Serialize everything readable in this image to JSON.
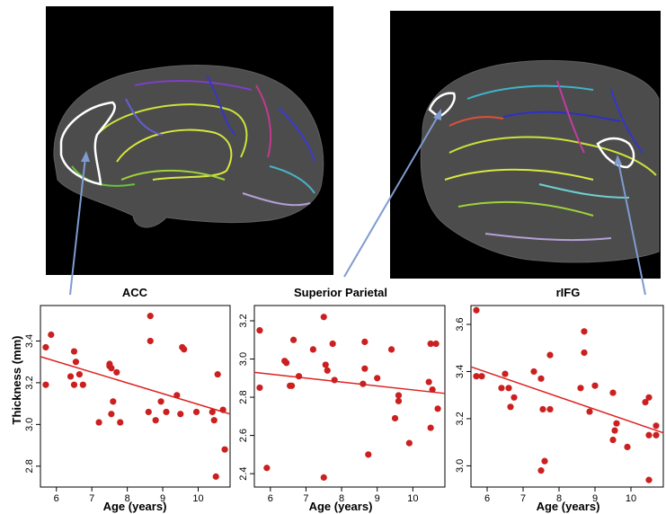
{
  "colors": {
    "brain_background": "#000000",
    "cortex_surface": "#4d4d4d",
    "point": "#cc1f1f",
    "fit_line": "#dd2222",
    "connector": "#7f9bd0",
    "roi_outline": "#ffffff"
  },
  "brains": [
    {
      "view": "medial",
      "highlighted_roi": "ACC"
    },
    {
      "view": "lateral",
      "highlighted_roi": [
        "Superior Parietal",
        "rIFG"
      ]
    }
  ],
  "chart_data": [
    {
      "type": "scatter",
      "title": "ACC",
      "xlabel": "Age (years)",
      "ylabel": "Thickness (mm)",
      "xlim": [
        5.55,
        10.9
      ],
      "ylim": [
        2.7,
        3.57
      ],
      "xticks": [
        6,
        7,
        8,
        9,
        10
      ],
      "yticks": [
        2.8,
        3.0,
        3.2,
        3.4
      ],
      "ytick_labels": [
        "2.8",
        "3.0",
        "3.2",
        "3.4"
      ],
      "fit": {
        "x": [
          5.55,
          10.9
        ],
        "y": [
          3.325,
          3.05
        ]
      },
      "points": [
        {
          "x": 5.7,
          "y": 3.37
        },
        {
          "x": 5.7,
          "y": 3.19
        },
        {
          "x": 5.85,
          "y": 3.43
        },
        {
          "x": 6.4,
          "y": 3.23
        },
        {
          "x": 6.5,
          "y": 3.35
        },
        {
          "x": 6.55,
          "y": 3.3
        },
        {
          "x": 6.5,
          "y": 3.19
        },
        {
          "x": 6.75,
          "y": 3.19
        },
        {
          "x": 6.65,
          "y": 3.24
        },
        {
          "x": 7.2,
          "y": 3.01
        },
        {
          "x": 7.5,
          "y": 3.29
        },
        {
          "x": 7.5,
          "y": 3.28
        },
        {
          "x": 7.55,
          "y": 3.27
        },
        {
          "x": 7.7,
          "y": 3.25
        },
        {
          "x": 7.6,
          "y": 3.11
        },
        {
          "x": 7.55,
          "y": 3.05
        },
        {
          "x": 7.8,
          "y": 3.01
        },
        {
          "x": 8.65,
          "y": 3.52
        },
        {
          "x": 8.65,
          "y": 3.4
        },
        {
          "x": 8.6,
          "y": 3.06
        },
        {
          "x": 8.8,
          "y": 3.02
        },
        {
          "x": 8.95,
          "y": 3.11
        },
        {
          "x": 9.1,
          "y": 3.06
        },
        {
          "x": 9.4,
          "y": 3.14
        },
        {
          "x": 9.55,
          "y": 3.37
        },
        {
          "x": 9.6,
          "y": 3.36
        },
        {
          "x": 9.5,
          "y": 3.05
        },
        {
          "x": 9.95,
          "y": 3.06
        },
        {
          "x": 10.4,
          "y": 3.06
        },
        {
          "x": 10.45,
          "y": 3.02
        },
        {
          "x": 10.55,
          "y": 3.24
        },
        {
          "x": 10.7,
          "y": 3.07
        },
        {
          "x": 10.75,
          "y": 2.88
        },
        {
          "x": 10.5,
          "y": 2.75
        }
      ]
    },
    {
      "type": "scatter",
      "title": "Superior Parietal",
      "xlabel": "Age (years)",
      "ylabel": "",
      "xlim": [
        5.55,
        10.9
      ],
      "ylim": [
        2.33,
        3.28
      ],
      "xticks": [
        6,
        7,
        8,
        9,
        10
      ],
      "yticks": [
        2.4,
        2.6,
        2.8,
        3.0,
        3.2
      ],
      "ytick_labels": [
        "2.4",
        "2.6",
        "2.8",
        "3.0",
        "3.2"
      ],
      "fit": {
        "x": [
          5.55,
          10.9
        ],
        "y": [
          2.93,
          2.82
        ]
      },
      "points": [
        {
          "x": 5.7,
          "y": 3.15
        },
        {
          "x": 5.7,
          "y": 2.85
        },
        {
          "x": 5.9,
          "y": 2.43
        },
        {
          "x": 6.4,
          "y": 2.99
        },
        {
          "x": 6.45,
          "y": 2.98
        },
        {
          "x": 6.55,
          "y": 2.86
        },
        {
          "x": 6.6,
          "y": 2.86
        },
        {
          "x": 6.65,
          "y": 3.1
        },
        {
          "x": 6.8,
          "y": 2.91
        },
        {
          "x": 7.2,
          "y": 3.05
        },
        {
          "x": 7.5,
          "y": 3.22
        },
        {
          "x": 7.55,
          "y": 2.97
        },
        {
          "x": 7.6,
          "y": 2.94
        },
        {
          "x": 7.75,
          "y": 3.08
        },
        {
          "x": 7.8,
          "y": 2.89
        },
        {
          "x": 7.5,
          "y": 2.38
        },
        {
          "x": 8.65,
          "y": 3.09
        },
        {
          "x": 8.65,
          "y": 2.95
        },
        {
          "x": 8.6,
          "y": 2.87
        },
        {
          "x": 8.75,
          "y": 2.5
        },
        {
          "x": 9.0,
          "y": 2.9
        },
        {
          "x": 9.4,
          "y": 3.05
        },
        {
          "x": 9.5,
          "y": 2.69
        },
        {
          "x": 9.6,
          "y": 2.81
        },
        {
          "x": 9.6,
          "y": 2.78
        },
        {
          "x": 9.9,
          "y": 2.56
        },
        {
          "x": 10.5,
          "y": 3.08
        },
        {
          "x": 10.45,
          "y": 2.88
        },
        {
          "x": 10.55,
          "y": 2.84
        },
        {
          "x": 10.65,
          "y": 3.08
        },
        {
          "x": 10.5,
          "y": 2.64
        },
        {
          "x": 10.7,
          "y": 2.74
        }
      ]
    },
    {
      "type": "scatter",
      "title": "rIFG",
      "xlabel": "Age (years)",
      "ylabel": "",
      "xlim": [
        5.55,
        10.9
      ],
      "ylim": [
        2.91,
        3.68
      ],
      "xticks": [
        6,
        7,
        8,
        9,
        10
      ],
      "yticks": [
        3.0,
        3.2,
        3.4,
        3.6
      ],
      "ytick_labels": [
        "3.0",
        "3.2",
        "3.4",
        "3.6"
      ],
      "fit": {
        "x": [
          5.55,
          10.9
        ],
        "y": [
          3.42,
          3.14
        ]
      },
      "points": [
        {
          "x": 5.7,
          "y": 3.66
        },
        {
          "x": 5.7,
          "y": 3.38
        },
        {
          "x": 5.85,
          "y": 3.38
        },
        {
          "x": 6.4,
          "y": 3.33
        },
        {
          "x": 6.5,
          "y": 3.39
        },
        {
          "x": 6.6,
          "y": 3.33
        },
        {
          "x": 6.65,
          "y": 3.25
        },
        {
          "x": 6.75,
          "y": 3.29
        },
        {
          "x": 7.3,
          "y": 3.4
        },
        {
          "x": 7.5,
          "y": 3.37
        },
        {
          "x": 7.55,
          "y": 3.24
        },
        {
          "x": 7.6,
          "y": 3.02
        },
        {
          "x": 7.5,
          "y": 2.98
        },
        {
          "x": 7.75,
          "y": 3.47
        },
        {
          "x": 7.75,
          "y": 3.24
        },
        {
          "x": 8.7,
          "y": 3.57
        },
        {
          "x": 8.7,
          "y": 3.48
        },
        {
          "x": 8.6,
          "y": 3.33
        },
        {
          "x": 8.85,
          "y": 3.23
        },
        {
          "x": 9.0,
          "y": 3.34
        },
        {
          "x": 9.5,
          "y": 3.31
        },
        {
          "x": 9.6,
          "y": 3.18
        },
        {
          "x": 9.55,
          "y": 3.15
        },
        {
          "x": 9.5,
          "y": 3.11
        },
        {
          "x": 9.9,
          "y": 3.08
        },
        {
          "x": 10.4,
          "y": 3.27
        },
        {
          "x": 10.5,
          "y": 3.29
        },
        {
          "x": 10.5,
          "y": 3.13
        },
        {
          "x": 10.7,
          "y": 3.17
        },
        {
          "x": 10.7,
          "y": 3.13
        },
        {
          "x": 10.5,
          "y": 2.94
        }
      ]
    }
  ]
}
